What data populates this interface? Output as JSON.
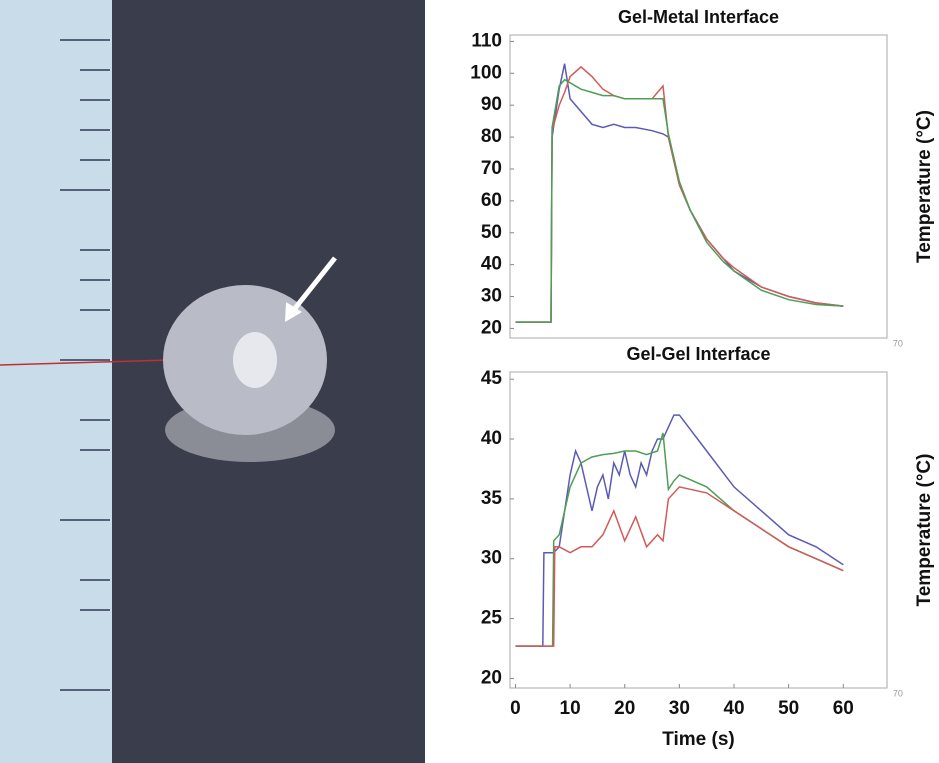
{
  "chart_data": [
    {
      "type": "line",
      "title": "Gel-Metal Interface",
      "y_label": "Temperature (°C)",
      "xlim": [
        -1,
        68
      ],
      "xticks": [
        70
      ],
      "ylim": [
        17,
        112
      ],
      "yticks": [
        20,
        30,
        40,
        50,
        60,
        70,
        80,
        90,
        100,
        110
      ],
      "series": [
        {
          "color": "#5b5bb5",
          "x": [
            0,
            6.5,
            6.7,
            8,
            9,
            10,
            12,
            14,
            16,
            18,
            20,
            22,
            25,
            27,
            28,
            30,
            32,
            35,
            38,
            40,
            45,
            50,
            55,
            60
          ],
          "values": [
            22,
            22,
            80,
            95,
            103,
            92,
            88,
            84,
            83,
            84,
            83,
            83,
            82,
            81,
            80,
            65,
            57,
            48,
            42,
            38,
            33,
            30,
            28,
            27
          ]
        },
        {
          "color": "#d25a5a",
          "x": [
            0,
            6.5,
            6.7,
            8,
            9,
            10,
            12,
            14,
            16,
            18,
            20,
            22,
            25,
            27,
            28,
            30,
            32,
            35,
            38,
            40,
            45,
            50,
            55,
            60
          ],
          "values": [
            22,
            22,
            82,
            90,
            94,
            99,
            102,
            99,
            95,
            93,
            92,
            92,
            92,
            96,
            80,
            65,
            57,
            48,
            42,
            39,
            33,
            30,
            28,
            27
          ]
        },
        {
          "color": "#4e9e55",
          "x": [
            0,
            6.5,
            6.7,
            8,
            9,
            10,
            12,
            14,
            16,
            18,
            20,
            22,
            25,
            27,
            28,
            30,
            32,
            35,
            38,
            40,
            45,
            50,
            55,
            60
          ],
          "values": [
            22,
            22,
            83,
            96,
            98,
            97,
            95,
            94,
            93,
            93,
            92,
            92,
            92,
            92,
            81,
            66,
            57,
            47,
            41,
            38,
            32,
            29,
            27.5,
            27
          ]
        }
      ]
    },
    {
      "type": "line",
      "title": "Gel-Gel Interface",
      "y_label": "Temperature (°C)",
      "x_label": "Time (s)",
      "xlim": [
        -1,
        68
      ],
      "xticks": [
        0,
        10,
        20,
        30,
        40,
        50,
        60,
        70
      ],
      "ylim": [
        19.2,
        45.6
      ],
      "yticks": [
        20,
        25,
        30,
        35,
        40,
        45
      ],
      "series": [
        {
          "color": "#5b5bb5",
          "x": [
            0,
            5,
            5.2,
            7,
            8,
            10,
            11,
            12,
            13,
            14,
            15,
            16,
            17,
            18,
            19,
            20,
            21,
            22,
            23,
            24,
            25,
            26,
            27,
            28,
            29,
            30,
            35,
            40,
            45,
            50,
            55,
            60
          ],
          "values": [
            22.7,
            22.7,
            30.5,
            30.5,
            31,
            37,
            39,
            38,
            36,
            34,
            36,
            37,
            35,
            38,
            37,
            39,
            37,
            36,
            38,
            37,
            39,
            40,
            40,
            41,
            42,
            42,
            39,
            36,
            34,
            32,
            31,
            29.5
          ]
        },
        {
          "color": "#4e9e55",
          "x": [
            0,
            6.8,
            7,
            8,
            10,
            12,
            14,
            16,
            18,
            20,
            22,
            24,
            26,
            27,
            28,
            29,
            30,
            35,
            40,
            45,
            50,
            55,
            60
          ],
          "values": [
            22.7,
            22.7,
            31.5,
            32,
            36,
            38,
            38.5,
            38.7,
            38.8,
            39,
            39,
            38.7,
            39,
            40.5,
            35.8,
            36.5,
            37,
            36,
            34,
            32.5,
            31,
            30,
            29
          ]
        },
        {
          "color": "#d25a5a",
          "x": [
            0,
            7,
            7.2,
            8,
            10,
            12,
            14,
            16,
            18,
            20,
            22,
            24,
            26,
            27,
            28,
            30,
            35,
            40,
            45,
            50,
            55,
            60
          ],
          "values": [
            22.7,
            22.7,
            31,
            31,
            30.5,
            31,
            31,
            32,
            34,
            31.5,
            33.5,
            31,
            32,
            31.5,
            35,
            36,
            35.5,
            34,
            32.5,
            31,
            30,
            29
          ]
        }
      ]
    }
  ]
}
